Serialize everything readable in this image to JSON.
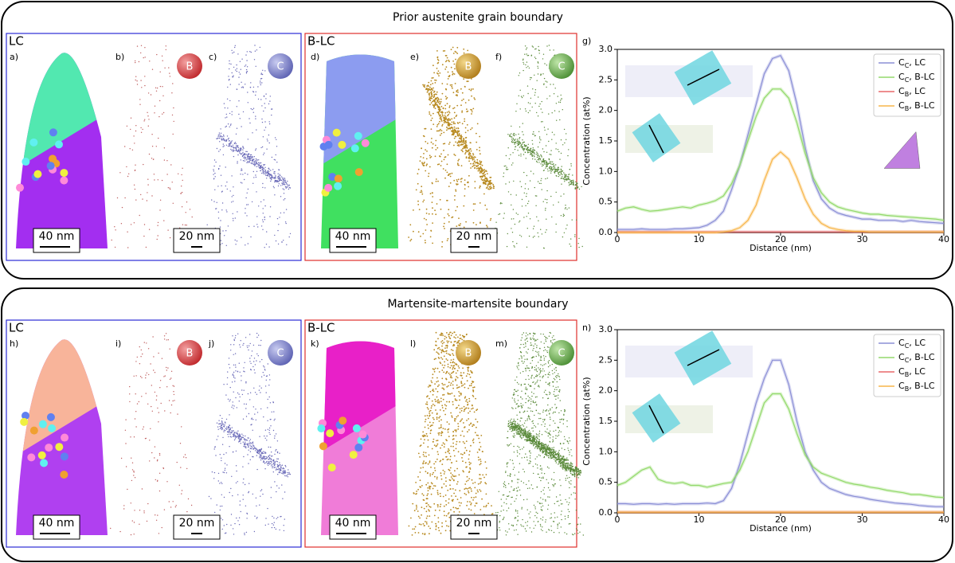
{
  "panels": [
    {
      "title": "Prior austenite grain boundary",
      "chart_label": "g)",
      "groups": [
        {
          "name": "LC",
          "labels": [
            "a)",
            "b)",
            "c)"
          ],
          "scale_bars": [
            "40 nm",
            "20 nm"
          ],
          "elements": [
            "B",
            "C"
          ]
        },
        {
          "name": "B-LC",
          "labels": [
            "d)",
            "e)",
            "f)"
          ],
          "scale_bars": [
            "40 nm",
            "20 nm"
          ],
          "elements": [
            "B",
            "C"
          ]
        }
      ]
    },
    {
      "title": "Martensite-martensite boundary",
      "chart_label": "n)",
      "groups": [
        {
          "name": "LC",
          "labels": [
            "h)",
            "i)",
            "j)"
          ],
          "scale_bars": [
            "40 nm",
            "20 nm"
          ],
          "elements": [
            "B",
            "C"
          ]
        },
        {
          "name": "B-LC",
          "labels": [
            "k)",
            "l)",
            "m)"
          ],
          "scale_bars": [
            "40 nm",
            "20 nm"
          ],
          "elements": [
            "B",
            "C"
          ]
        }
      ]
    }
  ],
  "chart_data": [
    {
      "type": "line",
      "xlabel": "Distance (nm)",
      "ylabel": "Concentration (at%)",
      "legend": "upper right",
      "x": [
        0,
        1,
        2,
        3,
        4,
        5,
        6,
        7,
        8,
        9,
        10,
        11,
        12,
        13,
        14,
        15,
        16,
        17,
        18,
        19,
        20,
        21,
        22,
        23,
        24,
        25,
        26,
        27,
        28,
        29,
        30,
        31,
        32,
        33,
        34,
        35,
        36,
        37,
        38,
        39,
        40
      ],
      "xlim": [
        0,
        40
      ],
      "xticks": [
        0,
        10,
        20,
        30,
        40
      ],
      "ylim": [
        0,
        3
      ],
      "yticks": [
        {
          "value": 0,
          "label": "0.0"
        },
        0.5,
        {
          "value": 1,
          "label": "1.0"
        },
        1.5,
        {
          "value": 2,
          "label": "2.0"
        },
        2.5,
        {
          "value": 3,
          "label": "3.0"
        }
      ],
      "series": [
        {
          "name": "C_C, LC",
          "color": "#8b8fd6",
          "values": [
            0.05,
            0.05,
            0.05,
            0.06,
            0.05,
            0.05,
            0.05,
            0.06,
            0.06,
            0.07,
            0.08,
            0.12,
            0.2,
            0.35,
            0.7,
            1.1,
            1.6,
            2.1,
            2.6,
            2.85,
            2.9,
            2.65,
            2.1,
            1.4,
            0.85,
            0.55,
            0.4,
            0.32,
            0.28,
            0.25,
            0.22,
            0.22,
            0.2,
            0.2,
            0.2,
            0.18,
            0.2,
            0.18,
            0.17,
            0.16,
            0.15
          ]
        },
        {
          "name": "C_C, B-LC",
          "color": "#93d96b",
          "values": [
            0.35,
            0.4,
            0.42,
            0.38,
            0.35,
            0.36,
            0.38,
            0.4,
            0.42,
            0.4,
            0.45,
            0.48,
            0.52,
            0.6,
            0.8,
            1.1,
            1.5,
            1.9,
            2.2,
            2.35,
            2.35,
            2.2,
            1.8,
            1.3,
            0.9,
            0.65,
            0.5,
            0.42,
            0.38,
            0.35,
            0.32,
            0.3,
            0.3,
            0.28,
            0.27,
            0.26,
            0.25,
            0.24,
            0.23,
            0.22,
            0.2
          ]
        },
        {
          "name": "C_B, LC",
          "color": "#e8686a",
          "values": [
            0.01,
            0.01,
            0.01,
            0.01,
            0.01,
            0.01,
            0.01,
            0.01,
            0.01,
            0.01,
            0.01,
            0.01,
            0.01,
            0.01,
            0.01,
            0.01,
            0.01,
            0.01,
            0.01,
            0.01,
            0.01,
            0.01,
            0.01,
            0.01,
            0.01,
            0.01,
            0.01,
            0.01,
            0.01,
            0.01,
            0.01,
            0.01,
            0.01,
            0.01,
            0.01,
            0.01,
            0.01,
            0.01,
            0.01,
            0.01,
            0.01
          ]
        },
        {
          "name": "C_B, B-LC",
          "color": "#f7b54a",
          "values": [
            0,
            0,
            0,
            0,
            0,
            0,
            0,
            0,
            0,
            0,
            0,
            0,
            0,
            0.01,
            0.03,
            0.08,
            0.2,
            0.45,
            0.85,
            1.2,
            1.32,
            1.2,
            0.9,
            0.55,
            0.3,
            0.15,
            0.08,
            0.05,
            0.03,
            0.02,
            0.02,
            0.01,
            0.01,
            0.01,
            0.01,
            0.01,
            0.01,
            0.01,
            0.01,
            0.01,
            0.01
          ]
        }
      ]
    },
    {
      "type": "line",
      "xlabel": "Distance (nm)",
      "ylabel": "Concentration (at%)",
      "legend": "upper right",
      "x": [
        0,
        1,
        2,
        3,
        4,
        5,
        6,
        7,
        8,
        9,
        10,
        11,
        12,
        13,
        14,
        15,
        16,
        17,
        18,
        19,
        20,
        21,
        22,
        23,
        24,
        25,
        26,
        27,
        28,
        29,
        30,
        31,
        32,
        33,
        34,
        35,
        36,
        37,
        38,
        39,
        40
      ],
      "xlim": [
        0,
        40
      ],
      "xticks": [
        0,
        10,
        20,
        30,
        40
      ],
      "ylim": [
        0,
        3
      ],
      "yticks": [
        {
          "value": 0,
          "label": "0.0"
        },
        0.5,
        {
          "value": 1,
          "label": "1.0"
        },
        1.5,
        {
          "value": 2,
          "label": "2.0"
        },
        2.5,
        {
          "value": 3,
          "label": "3.0"
        }
      ],
      "series": [
        {
          "name": "C_C, LC",
          "color": "#8b8fd6",
          "values": [
            0.15,
            0.15,
            0.14,
            0.15,
            0.15,
            0.14,
            0.15,
            0.14,
            0.15,
            0.15,
            0.15,
            0.16,
            0.15,
            0.2,
            0.4,
            0.8,
            1.3,
            1.8,
            2.2,
            2.5,
            2.5,
            2.1,
            1.5,
            1.0,
            0.7,
            0.5,
            0.4,
            0.35,
            0.3,
            0.27,
            0.25,
            0.22,
            0.2,
            0.18,
            0.16,
            0.15,
            0.14,
            0.12,
            0.11,
            0.1,
            0.1
          ]
        },
        {
          "name": "C_C, B-LC",
          "color": "#93d96b",
          "values": [
            0.45,
            0.5,
            0.6,
            0.7,
            0.75,
            0.55,
            0.5,
            0.48,
            0.5,
            0.45,
            0.45,
            0.42,
            0.45,
            0.48,
            0.5,
            0.7,
            1.0,
            1.4,
            1.8,
            1.95,
            1.95,
            1.7,
            1.3,
            0.95,
            0.75,
            0.65,
            0.6,
            0.55,
            0.5,
            0.47,
            0.45,
            0.42,
            0.4,
            0.37,
            0.35,
            0.33,
            0.3,
            0.3,
            0.28,
            0.26,
            0.25
          ]
        },
        {
          "name": "C_B, LC",
          "color": "#e8686a",
          "values": [
            0.01,
            0.01,
            0.01,
            0.01,
            0.01,
            0.01,
            0.01,
            0.01,
            0.01,
            0.01,
            0.01,
            0.01,
            0.01,
            0.01,
            0.01,
            0.01,
            0.01,
            0.01,
            0.01,
            0.01,
            0.01,
            0.01,
            0.01,
            0.01,
            0.01,
            0.01,
            0.01,
            0.01,
            0.01,
            0.01,
            0.01,
            0.01,
            0.01,
            0.01,
            0.01,
            0.01,
            0.01,
            0.01,
            0.01,
            0.01,
            0.01
          ]
        },
        {
          "name": "C_B, B-LC",
          "color": "#f7b54a",
          "values": [
            0.01,
            0.01,
            0.01,
            0.01,
            0.01,
            0.01,
            0.01,
            0.01,
            0.01,
            0.01,
            0.01,
            0.01,
            0.01,
            0.01,
            0.01,
            0.01,
            0.01,
            0.01,
            0.01,
            0.01,
            0.01,
            0.01,
            0.01,
            0.01,
            0.01,
            0.01,
            0.01,
            0.01,
            0.01,
            0.01,
            0.01,
            0.01,
            0.01,
            0.01,
            0.01,
            0.01,
            0.01,
            0.01,
            0.01,
            0.01,
            0.01
          ]
        }
      ]
    }
  ]
}
